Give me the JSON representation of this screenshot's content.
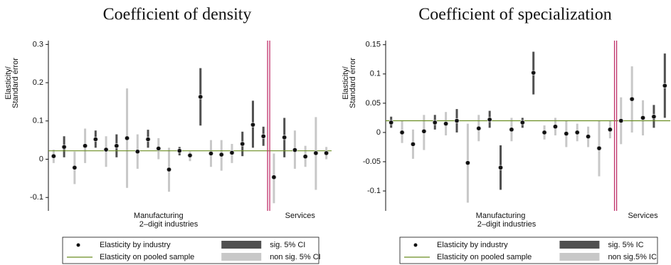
{
  "chart_data": [
    {
      "type": "errorbar",
      "title": "Coefficient of density",
      "y_label": [
        "Elasticity/",
        "Standard error"
      ],
      "x_label": "2–digit industries",
      "ylim": [
        -0.135,
        0.31
      ],
      "yticks": [
        -0.1,
        0,
        0.1,
        0.2,
        0.3
      ],
      "groups": [
        {
          "name": "Manufacturing",
          "values": [
            0.008,
            0.032,
            -0.022,
            0.035,
            0.052,
            0.025,
            0.035,
            0.055,
            0.02,
            0.052,
            0.028,
            -0.027,
            0.022,
            0.01,
            0.163,
            0.015,
            0.012,
            0.017,
            0.04,
            0.09,
            0.06
          ],
          "lower": [
            -0.01,
            0.005,
            -0.065,
            -0.01,
            0.03,
            -0.02,
            0.005,
            -0.075,
            -0.025,
            0.03,
            0,
            -0.085,
            0.01,
            -0.005,
            0.088,
            -0.02,
            -0.03,
            -0.01,
            0.008,
            0.03,
            0.035
          ],
          "upper": [
            0.025,
            0.06,
            0.02,
            0.08,
            0.075,
            0.06,
            0.065,
            0.185,
            0.065,
            0.077,
            0.055,
            0.03,
            0.032,
            0.02,
            0.238,
            0.05,
            0.05,
            0.04,
            0.072,
            0.153,
            0.085
          ],
          "significant": [
            false,
            true,
            false,
            false,
            true,
            false,
            true,
            false,
            false,
            true,
            false,
            false,
            true,
            false,
            true,
            false,
            false,
            false,
            true,
            true,
            true
          ]
        },
        {
          "name": "Services",
          "values": [
            -0.047,
            0.057,
            0.024,
            0.007,
            0.016,
            0.016
          ],
          "lower": [
            -0.115,
            0.005,
            -0.025,
            -0.02,
            -0.08,
            0
          ],
          "upper": [
            0.015,
            0.108,
            0.075,
            0.035,
            0.11,
            0.032
          ],
          "significant": [
            false,
            true,
            false,
            false,
            false,
            false
          ]
        }
      ],
      "pooled": 0.022,
      "colors": {
        "point": "#111111",
        "pooled": "#6b8e23",
        "sig": "#505050",
        "nonsig": "#c8c8c8",
        "divider": "#c0306a"
      },
      "legend": {
        "point": "Elasticity by industry",
        "pooled": "Elasticity on pooled sample",
        "sig": "sig. 5% CI",
        "nonsig": "non sig. 5% CI"
      }
    },
    {
      "type": "errorbar",
      "title": "Coefficient of specialization",
      "y_label": [
        "Elasticity/",
        "Standard error"
      ],
      "x_label": "2–digit industries",
      "ylim": [
        -0.134,
        0.157
      ],
      "yticks": [
        -0.1,
        -0.05,
        0,
        0.05,
        0.1,
        0.15
      ],
      "groups": [
        {
          "name": "Manufacturing",
          "values": [
            0.017,
            0,
            -0.02,
            0.002,
            0.017,
            0.015,
            0.02,
            -0.052,
            0.007,
            0.022,
            -0.06,
            0.005,
            0.017,
            0.102,
            0,
            0.01,
            -0.002,
            0,
            -0.007,
            -0.027,
            0.005
          ],
          "lower": [
            0.008,
            -0.018,
            -0.045,
            -0.03,
            0.005,
            -0.005,
            0,
            -0.12,
            -0.015,
            0.008,
            -0.098,
            -0.015,
            0.008,
            0.065,
            -0.012,
            -0.005,
            -0.025,
            -0.015,
            -0.025,
            -0.075,
            -0.01
          ],
          "upper": [
            0.027,
            0.02,
            0.005,
            0.03,
            0.03,
            0.035,
            0.04,
            0.015,
            0.03,
            0.037,
            -0.022,
            0.025,
            0.025,
            0.138,
            0.012,
            0.025,
            0.02,
            0.015,
            0.01,
            0.02,
            0.02
          ],
          "significant": [
            true,
            false,
            false,
            false,
            true,
            false,
            true,
            false,
            false,
            true,
            true,
            false,
            true,
            true,
            false,
            false,
            false,
            false,
            false,
            false,
            false
          ]
        },
        {
          "name": "Services",
          "values": [
            0.02,
            0.057,
            0.025,
            0.027,
            0.08
          ],
          "lower": [
            -0.02,
            0,
            -0.005,
            0.008,
            0.025
          ],
          "upper": [
            0.06,
            0.113,
            0.055,
            0.047,
            0.135
          ],
          "significant": [
            false,
            false,
            false,
            true,
            true
          ]
        }
      ],
      "pooled": 0.02,
      "colors": {
        "point": "#111111",
        "pooled": "#6b8e23",
        "sig": "#505050",
        "nonsig": "#c8c8c8",
        "divider": "#c0306a"
      },
      "legend": {
        "point": "Elasticity by industry",
        "pooled": "Elasticity on pooled sample",
        "sig": "sig. 5% IC",
        "nonsig": "non sig.5% IC"
      }
    }
  ]
}
